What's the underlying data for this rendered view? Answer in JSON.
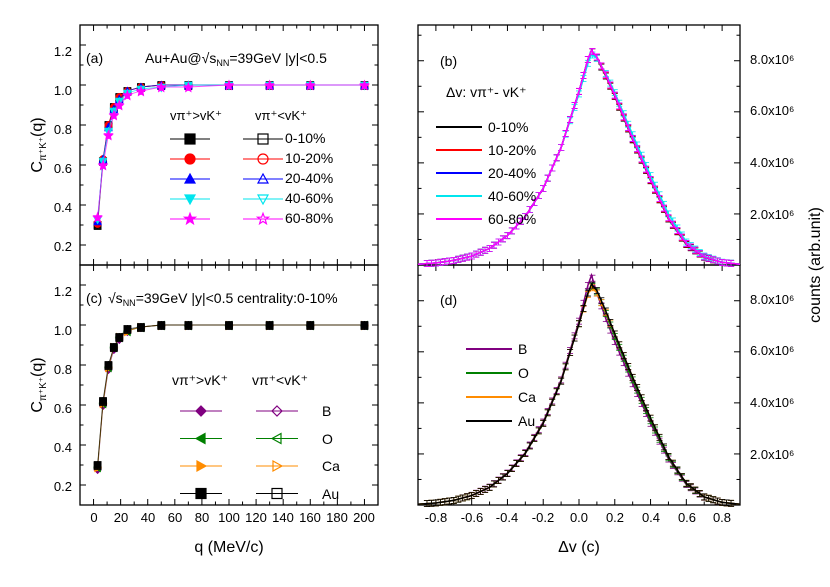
{
  "chart_data": [
    {
      "id": "a",
      "type": "scatter",
      "panel_label": "(a)",
      "title_main": "Au+Au@",
      "title_sqrt": "√s",
      "title_sub": "NN",
      "title_tail": "=39GeV |y|<0.5",
      "ylabel_main": "C",
      "ylabel_sub": "π⁺K⁺",
      "ylabel_tail": "(q)",
      "xlim": [
        -10,
        210
      ],
      "ylim": [
        0.1,
        1.3
      ],
      "yticks": [
        "0.2",
        "0.4",
        "0.6",
        "0.8",
        "1.0",
        "1.2"
      ],
      "legend_header_left": "vπ⁺>vK⁺",
      "legend_header_right": "vπ⁺<vK⁺",
      "q": [
        3,
        7,
        11,
        15,
        19,
        25,
        35,
        50,
        70,
        100,
        130,
        160,
        200
      ],
      "series": [
        {
          "name": "0-10%",
          "color": "#000000",
          "marker": "square",
          "values": [
            0.3,
            0.62,
            0.8,
            0.89,
            0.94,
            0.97,
            0.99,
            1.0,
            1.0,
            1.0,
            1.0,
            1.0,
            1.0
          ]
        },
        {
          "name": "10-20%",
          "color": "#ff0000",
          "marker": "circle",
          "values": [
            0.31,
            0.63,
            0.8,
            0.89,
            0.94,
            0.97,
            0.99,
            1.0,
            1.0,
            1.0,
            1.0,
            1.0,
            1.0
          ]
        },
        {
          "name": "20-40%",
          "color": "#0000ff",
          "marker": "triangle-up",
          "values": [
            0.32,
            0.63,
            0.79,
            0.88,
            0.93,
            0.97,
            0.99,
            1.0,
            1.0,
            1.0,
            1.0,
            1.0,
            1.0
          ]
        },
        {
          "name": "40-60%",
          "color": "#00e5ee",
          "marker": "triangle-down",
          "values": [
            0.33,
            0.62,
            0.77,
            0.87,
            0.92,
            0.96,
            0.98,
            0.99,
            1.0,
            1.0,
            1.0,
            1.0,
            1.0
          ]
        },
        {
          "name": "60-80%",
          "color": "#ff00ff",
          "marker": "star",
          "values": [
            0.34,
            0.6,
            0.75,
            0.85,
            0.9,
            0.95,
            0.97,
            0.99,
            0.99,
            1.0,
            1.0,
            1.0,
            1.0
          ]
        }
      ]
    },
    {
      "id": "b",
      "type": "line",
      "panel_label": "(b)",
      "title": "Δv: vπ⁺- vK⁺",
      "xlim": [
        -0.9,
        0.9
      ],
      "ylim": [
        0,
        9400000
      ],
      "yticks": [
        "2.0x10⁶",
        "4.0x10⁶",
        "6.0x10⁶",
        "8.0x10⁶"
      ],
      "ylabel": "counts (arb.unit)",
      "x": [
        -0.9,
        -0.8,
        -0.7,
        -0.6,
        -0.5,
        -0.4,
        -0.3,
        -0.2,
        -0.1,
        0.0,
        0.05,
        0.07,
        0.1,
        0.15,
        0.2,
        0.3,
        0.4,
        0.5,
        0.6,
        0.7,
        0.8,
        0.9
      ],
      "series": [
        {
          "name": "0-10%",
          "color": "#000000",
          "values": [
            30000,
            80000,
            180000,
            350000,
            650000,
            1150000,
            1900000,
            3000000,
            4600000,
            6800000,
            8050000,
            8400000,
            8100000,
            7400000,
            6600000,
            4900000,
            3300000,
            1800000,
            800000,
            300000,
            100000,
            30000
          ]
        },
        {
          "name": "10-20%",
          "color": "#ff0000",
          "values": [
            30000,
            80000,
            180000,
            350000,
            650000,
            1150000,
            1900000,
            3000000,
            4600000,
            6800000,
            8050000,
            8400000,
            8120000,
            7420000,
            6620000,
            4930000,
            3320000,
            1820000,
            820000,
            310000,
            100000,
            30000
          ]
        },
        {
          "name": "20-40%",
          "color": "#0000ff",
          "values": [
            30000,
            80000,
            180000,
            350000,
            650000,
            1150000,
            1900000,
            3000000,
            4600000,
            6800000,
            8050000,
            8400000,
            8140000,
            7450000,
            6650000,
            4960000,
            3350000,
            1850000,
            840000,
            320000,
            100000,
            30000
          ]
        },
        {
          "name": "40-60%",
          "color": "#00e5ee",
          "values": [
            30000,
            80000,
            180000,
            350000,
            650000,
            1150000,
            1900000,
            3000000,
            4600000,
            6700000,
            7900000,
            8250000,
            8100000,
            7500000,
            6750000,
            5100000,
            3500000,
            2000000,
            900000,
            350000,
            110000,
            30000
          ]
        },
        {
          "name": "60-80%",
          "color": "#ff00ff",
          "values": [
            30000,
            80000,
            180000,
            350000,
            650000,
            1150000,
            1900000,
            3000000,
            4600000,
            6800000,
            8050000,
            8400000,
            8150000,
            7450000,
            6650000,
            4950000,
            3350000,
            1850000,
            840000,
            320000,
            100000,
            30000
          ]
        }
      ]
    },
    {
      "id": "c",
      "type": "scatter",
      "panel_label": "(c)",
      "title_sqrt": "√s",
      "title_sub": "NN",
      "title_tail": "=39GeV |y|<0.5 centrality:0-10%",
      "ylabel_main": "C",
      "ylabel_sub": "π⁺K⁺",
      "ylabel_tail": "(q)",
      "xlabel": "q (MeV/c)",
      "xlim": [
        -10,
        210
      ],
      "ylim": [
        0.1,
        1.3
      ],
      "xticks": [
        "0",
        "20",
        "40",
        "60",
        "80",
        "100",
        "120",
        "140",
        "160",
        "180",
        "200"
      ],
      "yticks": [
        "0.2",
        "0.4",
        "0.6",
        "0.8",
        "1.0",
        "1.2"
      ],
      "legend_header_left": "vπ⁺>vK⁺",
      "legend_header_right": "vπ⁺<vK⁺",
      "q": [
        3,
        7,
        11,
        15,
        19,
        25,
        35,
        50,
        70,
        100,
        130,
        160,
        200
      ],
      "series": [
        {
          "name": "B",
          "color": "#800080",
          "marker": "diamond",
          "values": [
            0.28,
            0.6,
            0.78,
            0.88,
            0.93,
            0.97,
            0.99,
            1.0,
            1.0,
            1.0,
            1.0,
            1.0,
            1.0
          ]
        },
        {
          "name": "O",
          "color": "#008000",
          "marker": "triangle-left",
          "values": [
            0.29,
            0.61,
            0.79,
            0.89,
            0.94,
            0.97,
            0.99,
            1.0,
            1.0,
            1.0,
            1.0,
            1.0,
            1.0
          ]
        },
        {
          "name": "Ca",
          "color": "#ff8c00",
          "marker": "triangle-right",
          "values": [
            0.29,
            0.61,
            0.79,
            0.89,
            0.94,
            0.97,
            0.99,
            1.0,
            1.0,
            1.0,
            1.0,
            1.0,
            1.0
          ]
        },
        {
          "name": "Au",
          "color": "#000000",
          "marker": "square",
          "values": [
            0.3,
            0.62,
            0.8,
            0.89,
            0.94,
            0.98,
            0.99,
            1.0,
            1.0,
            1.0,
            1.0,
            1.0,
            1.0
          ]
        }
      ]
    },
    {
      "id": "d",
      "type": "line",
      "panel_label": "(d)",
      "xlabel": "Δv (c)",
      "xlim": [
        -0.9,
        0.9
      ],
      "ylim": [
        0,
        9400000
      ],
      "xticks": [
        "-0.8",
        "-0.6",
        "-0.4",
        "-0.2",
        "0.0",
        "0.2",
        "0.4",
        "0.6",
        "0.8"
      ],
      "yticks": [
        "2.0x10⁶",
        "4.0x10⁶",
        "6.0x10⁶",
        "8.0x10⁶"
      ],
      "x": [
        -0.9,
        -0.8,
        -0.7,
        -0.6,
        -0.5,
        -0.4,
        -0.3,
        -0.2,
        -0.1,
        0.0,
        0.05,
        0.07,
        0.1,
        0.15,
        0.2,
        0.3,
        0.4,
        0.5,
        0.6,
        0.7,
        0.8,
        0.9
      ],
      "series": [
        {
          "name": "B",
          "color": "#800080",
          "values": [
            30000,
            80000,
            180000,
            380000,
            700000,
            1250000,
            2050000,
            3250000,
            4900000,
            7200000,
            8600000,
            9000000,
            8300000,
            7300000,
            6400000,
            4750000,
            3200000,
            1800000,
            800000,
            300000,
            100000,
            30000
          ]
        },
        {
          "name": "O",
          "color": "#008000",
          "values": [
            30000,
            80000,
            180000,
            370000,
            690000,
            1230000,
            2020000,
            3200000,
            4850000,
            7100000,
            8300000,
            8600000,
            8350000,
            7500000,
            6600000,
            4900000,
            3300000,
            1850000,
            830000,
            310000,
            100000,
            30000
          ]
        },
        {
          "name": "Ca",
          "color": "#ff8c00",
          "values": [
            30000,
            80000,
            180000,
            370000,
            690000,
            1230000,
            2020000,
            3200000,
            4850000,
            7100000,
            8250000,
            8550000,
            8300000,
            7550000,
            6700000,
            5000000,
            3400000,
            1900000,
            850000,
            320000,
            100000,
            30000
          ]
        },
        {
          "name": "Au",
          "color": "#000000",
          "values": [
            30000,
            80000,
            180000,
            370000,
            690000,
            1230000,
            2020000,
            3200000,
            4850000,
            7100000,
            8300000,
            8650000,
            8400000,
            7600000,
            6700000,
            5000000,
            3400000,
            1900000,
            850000,
            320000,
            100000,
            30000
          ]
        }
      ]
    }
  ]
}
